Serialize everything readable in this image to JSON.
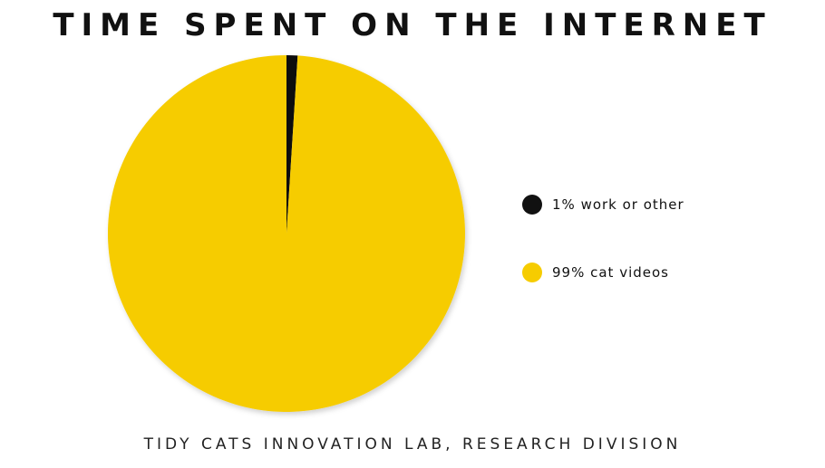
{
  "chart_data": {
    "type": "pie",
    "title": "TIME SPENT ON THE INTERNET",
    "categories": [
      "1% work or other",
      "99% cat videos"
    ],
    "values": [
      1,
      99
    ],
    "colors": [
      "#111111",
      "#f6cc00"
    ],
    "legend_position": "right",
    "source": "TIDY CATS INNOVATION LAB, RESEARCH DIVISION"
  }
}
